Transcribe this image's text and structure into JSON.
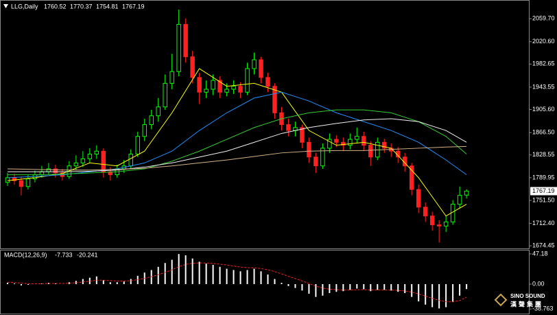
{
  "chart_data": [
    {
      "type": "candlestick",
      "title": "LLG,Daily",
      "open": [
        1782,
        1790,
        1785,
        1775,
        1788,
        1795,
        1800,
        1805,
        1798,
        1792,
        1810,
        1815,
        1822,
        1830,
        1835,
        1800,
        1795,
        1805,
        1810,
        1830,
        1860,
        1880,
        1895,
        1910,
        1950,
        1970,
        2050,
        1995,
        1960,
        1935,
        1940,
        1955,
        1935,
        1940,
        1945,
        1935,
        1975,
        1990,
        1960,
        1945,
        1900,
        1880,
        1870,
        1875,
        1850,
        1825,
        1810,
        1840,
        1855,
        1850,
        1845,
        1855,
        1860,
        1845,
        1825,
        1850,
        1840,
        1835,
        1825,
        1810,
        1770,
        1740,
        1725,
        1710,
        1708,
        1715,
        1745,
        1760.52
      ],
      "high": [
        1798,
        1797,
        1792,
        1795,
        1802,
        1810,
        1815,
        1812,
        1805,
        1818,
        1828,
        1835,
        1840,
        1845,
        1840,
        1808,
        1812,
        1820,
        1838,
        1868,
        1890,
        1905,
        1925,
        1965,
        2000,
        2075,
        2060,
        2005,
        1968,
        1955,
        1965,
        1962,
        1950,
        1955,
        1952,
        1985,
        2002,
        1995,
        1968,
        1950,
        1910,
        1890,
        1885,
        1880,
        1858,
        1832,
        1848,
        1865,
        1862,
        1858,
        1865,
        1875,
        1868,
        1852,
        1858,
        1856,
        1848,
        1842,
        1832,
        1815,
        1778,
        1748,
        1732,
        1718,
        1725,
        1752,
        1775,
        1770.37
      ],
      "low": [
        1776,
        1778,
        1760,
        1770,
        1782,
        1790,
        1795,
        1790,
        1785,
        1788,
        1803,
        1808,
        1815,
        1822,
        1790,
        1785,
        1790,
        1798,
        1805,
        1825,
        1852,
        1872,
        1885,
        1905,
        1940,
        1962,
        1985,
        1950,
        1915,
        1925,
        1930,
        1925,
        1928,
        1932,
        1925,
        1930,
        1965,
        1950,
        1935,
        1890,
        1870,
        1860,
        1860,
        1840,
        1815,
        1798,
        1805,
        1832,
        1842,
        1835,
        1838,
        1848,
        1835,
        1810,
        1820,
        1832,
        1825,
        1815,
        1800,
        1760,
        1730,
        1715,
        1700,
        1680,
        1698,
        1710,
        1738,
        1754.81
      ],
      "close": [
        1790,
        1785,
        1775,
        1788,
        1795,
        1800,
        1805,
        1798,
        1792,
        1810,
        1815,
        1822,
        1830,
        1835,
        1800,
        1795,
        1805,
        1810,
        1830,
        1860,
        1880,
        1895,
        1910,
        1950,
        1970,
        2050,
        1995,
        1960,
        1935,
        1940,
        1955,
        1935,
        1940,
        1945,
        1935,
        1975,
        1990,
        1960,
        1945,
        1900,
        1880,
        1870,
        1875,
        1850,
        1825,
        1810,
        1840,
        1855,
        1850,
        1845,
        1855,
        1860,
        1845,
        1825,
        1850,
        1840,
        1835,
        1825,
        1810,
        1770,
        1740,
        1725,
        1710,
        1708,
        1715,
        1745,
        1760,
        1767.19
      ],
      "up_color": "#00ff00",
      "down_color": "#ff2020",
      "series": [
        {
          "color": "#ffff00",
          "x": [
            0,
            4,
            8,
            12,
            16,
            20,
            24,
            28,
            32,
            36,
            40,
            44,
            48,
            52,
            56,
            60,
            64,
            67
          ],
          "values": [
            1785,
            1790,
            1797,
            1815,
            1810,
            1835,
            1900,
            1975,
            1945,
            1950,
            1935,
            1870,
            1845,
            1850,
            1840,
            1790,
            1725,
            1745
          ]
        },
        {
          "color": "#1e90ff",
          "x": [
            0,
            4,
            8,
            12,
            16,
            20,
            24,
            28,
            32,
            36,
            40,
            44,
            48,
            52,
            56,
            60,
            64,
            67
          ],
          "values": [
            1790,
            1792,
            1795,
            1800,
            1805,
            1815,
            1835,
            1870,
            1900,
            1925,
            1935,
            1920,
            1900,
            1885,
            1870,
            1850,
            1820,
            1795
          ]
        },
        {
          "color": "#32cd32",
          "x": [
            0,
            4,
            8,
            12,
            16,
            20,
            24,
            28,
            32,
            36,
            40,
            44,
            48,
            52,
            56,
            60,
            64,
            67
          ],
          "values": [
            1795,
            1795,
            1796,
            1798,
            1800,
            1805,
            1818,
            1835,
            1855,
            1875,
            1890,
            1900,
            1905,
            1905,
            1900,
            1885,
            1860,
            1830
          ]
        },
        {
          "color": "#f0f0f0",
          "x": [
            0,
            4,
            8,
            12,
            16,
            20,
            24,
            28,
            32,
            36,
            40,
            44,
            48,
            52,
            56,
            60,
            64,
            67
          ],
          "values": [
            1800,
            1800,
            1800,
            1801,
            1803,
            1808,
            1815,
            1825,
            1835,
            1850,
            1865,
            1875,
            1882,
            1888,
            1890,
            1885,
            1870,
            1850
          ]
        },
        {
          "color": "#d2b48c",
          "x": [
            0,
            4,
            8,
            12,
            16,
            20,
            24,
            28,
            32,
            36,
            40,
            44,
            48,
            52,
            56,
            60,
            64,
            67
          ],
          "values": [
            1805,
            1804,
            1803,
            1803,
            1804,
            1806,
            1810,
            1815,
            1820,
            1826,
            1832,
            1835,
            1836,
            1836,
            1838,
            1840,
            1842,
            1843
          ]
        }
      ],
      "xlim": [
        -1,
        76.2
      ],
      "ylim": [
        1670,
        2089
      ],
      "yticks": [
        {
          "value": 2059.7,
          "label": "2059.70"
        },
        {
          "value": 2020.6,
          "label": "2020.60"
        },
        1982.65,
        1943.55,
        {
          "value": 1905.6,
          "label": "1905.60"
        },
        {
          "value": 1866.5,
          "label": "1866.50"
        },
        1828.55,
        1789.95,
        {
          "value": 1751.5,
          "label": "1751.50"
        },
        {
          "value": 1712.4,
          "label": "1712.40"
        },
        1674.45
      ]
    },
    {
      "type": "macd",
      "title": "MACD(12,26,9)",
      "histogram": [
        2,
        1,
        -2,
        -1,
        0,
        1,
        2,
        1,
        0,
        3,
        5,
        8,
        10,
        12,
        6,
        3,
        3,
        4,
        8,
        13,
        18,
        22,
        27,
        33,
        38,
        47,
        45,
        40,
        35,
        32,
        30,
        27,
        24,
        22,
        20,
        22,
        24,
        20,
        15,
        8,
        2,
        -3,
        -6,
        -10,
        -15,
        -20,
        -18,
        -14,
        -12,
        -11,
        -9,
        -7,
        -8,
        -11,
        -9,
        -9,
        -10,
        -12,
        -14,
        -20,
        -27,
        -32,
        -36,
        -38,
        -36,
        -28,
        -18,
        -7.733
      ],
      "signal": [
        3,
        2.5,
        1.5,
        0.8,
        0.5,
        0.6,
        1,
        1.1,
        1,
        1.4,
        2.1,
        3.3,
        4.6,
        6.1,
        6.1,
        5.5,
        5,
        4.8,
        5.4,
        7,
        9,
        11.6,
        14.7,
        18.4,
        22.3,
        27.3,
        30.8,
        32.6,
        33.1,
        32.9,
        32.3,
        31.2,
        29.8,
        28.2,
        26.6,
        25.7,
        25.4,
        24.3,
        22.4,
        19.5,
        16,
        12.2,
        8.6,
        4.9,
        0.9,
        -3.3,
        -6.2,
        -7.8,
        -8.7,
        -9.2,
        -9.2,
        -8.8,
        -8.6,
        -9.1,
        -9.1,
        -9.1,
        -9.3,
        -9.8,
        -10.6,
        -12.5,
        -15.4,
        -18.7,
        -22.2,
        -25.4,
        -27.5,
        -27.6,
        -25.7,
        -20.241
      ],
      "histogram_color": "#ffffff",
      "signal_color": "#ff2020",
      "xlim": [
        -1,
        76.2
      ],
      "ylim": [
        -45,
        52.5
      ],
      "yticks": [
        47.18,
        {
          "value": 0,
          "label": "0.00"
        },
        -38.763
      ]
    },
    {
      "type": "watermark",
      "title": "SINO SOUND",
      "subtitle": "漢聲集團"
    }
  ]
}
